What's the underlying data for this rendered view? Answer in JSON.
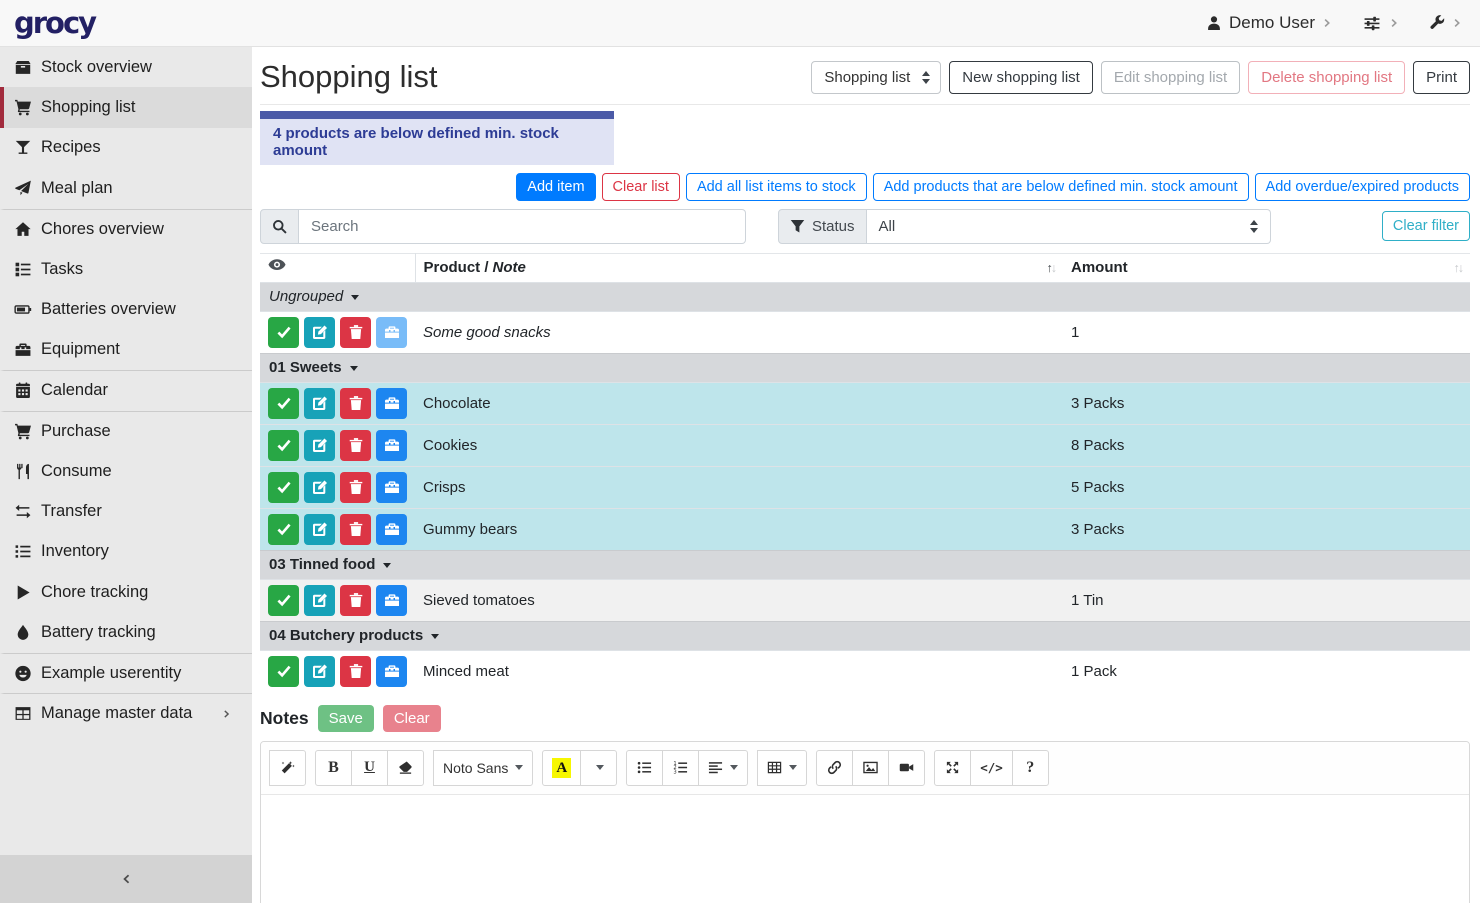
{
  "navbar": {
    "logo": "grocy",
    "user_label": "Demo User"
  },
  "sidebar": {
    "items": [
      {
        "label": "Stock overview",
        "icon": "box"
      },
      {
        "label": "Shopping list",
        "icon": "cart",
        "active": true
      },
      {
        "label": "Recipes",
        "icon": "cocktail"
      },
      {
        "label": "Meal plan",
        "icon": "paper-plane"
      },
      {
        "label": "Chores overview",
        "icon": "home",
        "divider": true
      },
      {
        "label": "Tasks",
        "icon": "tasks"
      },
      {
        "label": "Batteries overview",
        "icon": "battery"
      },
      {
        "label": "Equipment",
        "icon": "toolbox"
      },
      {
        "label": "Calendar",
        "icon": "calendar",
        "divider": true
      },
      {
        "label": "Purchase",
        "icon": "cart",
        "divider": true
      },
      {
        "label": "Consume",
        "icon": "utensils"
      },
      {
        "label": "Transfer",
        "icon": "exchange"
      },
      {
        "label": "Inventory",
        "icon": "list"
      },
      {
        "label": "Chore tracking",
        "icon": "play"
      },
      {
        "label": "Battery tracking",
        "icon": "tint"
      },
      {
        "label": "Example userentity",
        "icon": "smiley",
        "divider": true
      },
      {
        "label": "Manage master data",
        "icon": "table-filled",
        "divider": true,
        "chevron": true
      }
    ]
  },
  "header": {
    "title": "Shopping list",
    "list_selector": "Shopping list",
    "new_button": "New shopping list",
    "edit_button": "Edit shopping list",
    "delete_button": "Delete shopping list",
    "print_button": "Print"
  },
  "alert": {
    "text": "4 products are below defined min. stock amount"
  },
  "actions": {
    "add_item": "Add item",
    "clear_list": "Clear list",
    "add_all_to_stock": "Add all list items to stock",
    "add_below_min": "Add products that are below defined min. stock amount",
    "add_overdue": "Add overdue/expired products"
  },
  "filters": {
    "search_placeholder": "Search",
    "status_label": "Status",
    "status_value": "All",
    "clear_filter": "Clear filter"
  },
  "table": {
    "header": {
      "product_label": "Product /",
      "product_note_label": "Note",
      "amount_label": "Amount",
      "product_sort": "asc",
      "amount_sort": "none"
    },
    "groups": [
      {
        "name": "Ungrouped",
        "italic": true,
        "rows": [
          {
            "product": "Some good snacks",
            "is_note": true,
            "amount": "1",
            "highlight": "none",
            "stock_disabled": true
          }
        ]
      },
      {
        "name": "01 Sweets",
        "rows": [
          {
            "product": "Chocolate",
            "amount": "3 Packs",
            "highlight": "info"
          },
          {
            "product": "Cookies",
            "amount": "8 Packs",
            "highlight": "info"
          },
          {
            "product": "Crisps",
            "amount": "5 Packs",
            "highlight": "info"
          },
          {
            "product": "Gummy bears",
            "amount": "3 Packs",
            "highlight": "info"
          }
        ]
      },
      {
        "name": "03 Tinned food",
        "rows": [
          {
            "product": "Sieved tomatoes",
            "amount": "1 Tin",
            "highlight": "striped"
          }
        ]
      },
      {
        "name": "04 Butchery products",
        "rows": [
          {
            "product": "Minced meat",
            "amount": "1 Pack",
            "highlight": "none"
          }
        ]
      }
    ]
  },
  "notes": {
    "title": "Notes",
    "save_button": "Save",
    "clear_button": "Clear"
  },
  "editor": {
    "font_name": "Noto Sans",
    "bold": "B",
    "underline": "U",
    "code": "</>",
    "help": "?",
    "color_letter": "A",
    "groups": [
      [
        "magic"
      ],
      [
        "bold",
        "underline",
        "eraser"
      ],
      [
        "fontname"
      ],
      [
        "color",
        "color-caret"
      ],
      [
        "ul",
        "ol",
        "paragraph"
      ],
      [
        "table-grid"
      ],
      [
        "link",
        "picture",
        "video"
      ],
      [
        "fullscreen",
        "codeview",
        "help"
      ]
    ]
  },
  "colors": {
    "primary": "#007bff",
    "danger": "#dc3545",
    "success": "#28a745",
    "info": "#17a2b8",
    "alert_bar": "#4b5aa7",
    "alert_text": "#2d3c95",
    "row_info_bg": "#bee5eb",
    "active_nav_border": "#a12a3c",
    "highlight_yellow": "#f7f700"
  }
}
